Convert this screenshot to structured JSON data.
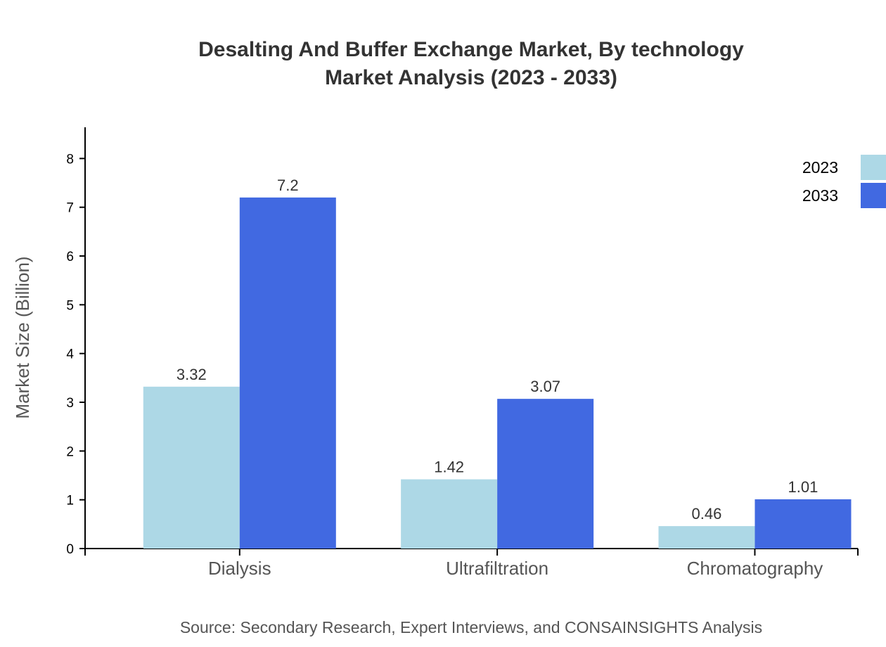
{
  "chart_data": {
    "type": "bar",
    "title": "Desalting And Buffer Exchange Market, By technology",
    "subtitle": "Market Analysis (2023 - 2033)",
    "xlabel": "",
    "ylabel": "Market Size (Billion)",
    "categories": [
      "Dialysis",
      "Ultrafiltration",
      "Chromatography"
    ],
    "series": [
      {
        "name": "2023",
        "values": [
          3.32,
          1.42,
          0.46
        ],
        "color": "#add8e6"
      },
      {
        "name": "2033",
        "values": [
          7.2,
          3.07,
          1.01
        ],
        "color": "#4169e1"
      }
    ],
    "ylim": [
      0,
      8.64
    ],
    "yticks": [
      0,
      1,
      2,
      3,
      4,
      5,
      6,
      7,
      8
    ],
    "grid": false,
    "legend": "top-right",
    "source": "Source: Secondary Research, Expert Interviews, and CONSAINSIGHTS Analysis"
  }
}
